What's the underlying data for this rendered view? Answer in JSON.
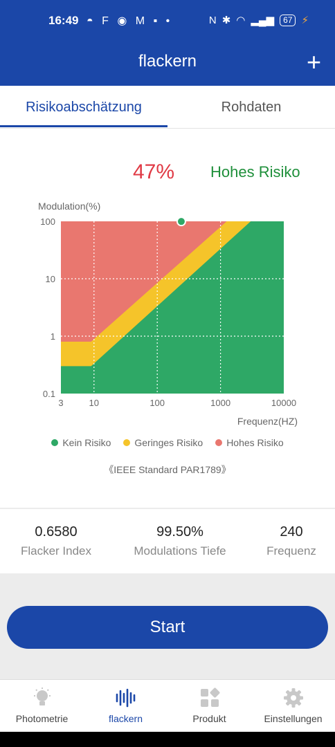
{
  "status_bar": {
    "time": "16:49",
    "notifications": "◓ F ◉ M ▪ •",
    "battery": "67"
  },
  "app_bar": {
    "title": "flackern",
    "add_icon": "plus-icon"
  },
  "tabs": [
    {
      "label": "Risikoabschätzung",
      "active": true
    },
    {
      "label": "Rohdaten",
      "active": false
    }
  ],
  "risk": {
    "percent": "47%",
    "label": "Hohes Risiko"
  },
  "chart_data": {
    "type": "area",
    "ylabel": "Modulation(%)",
    "xlabel": "Frequenz(HZ)",
    "x_scale": "log",
    "y_scale": "log",
    "xlim": [
      3,
      10000
    ],
    "ylim": [
      0.1,
      100
    ],
    "x_ticks": [
      "3",
      "10",
      "100",
      "1000",
      "10000"
    ],
    "y_ticks": [
      "100",
      "10",
      "1",
      "0.1"
    ],
    "grid": true,
    "regions": [
      {
        "name": "Kein Risiko",
        "color": "#2ea866"
      },
      {
        "name": "Geringes Risiko",
        "color": "#f5c42a"
      },
      {
        "name": "Hohes Risiko",
        "color": "#e9776f"
      }
    ],
    "measurement_point": {
      "x": 240,
      "y": 99.5
    },
    "legend_position": "bottom"
  },
  "legend": [
    {
      "label": "Kein Risiko",
      "color": "#2ea866"
    },
    {
      "label": "Geringes Risiko",
      "color": "#f5c42a"
    },
    {
      "label": "Hohes Risiko",
      "color": "#e9776f"
    }
  ],
  "standard": "《IEEE Standard PAR1789》",
  "stats": [
    {
      "value": "0.6580",
      "label": "Flacker Index"
    },
    {
      "value": "99.50%",
      "label": "Modulations Tiefe"
    },
    {
      "value": "240",
      "label": "Frequenz"
    }
  ],
  "start_button": "Start",
  "bottom_nav": [
    {
      "label": "Photometrie",
      "icon": "bulb-icon",
      "active": false
    },
    {
      "label": "flackern",
      "icon": "waveform-icon",
      "active": true
    },
    {
      "label": "Produkt",
      "icon": "grid-icon",
      "active": false
    },
    {
      "label": "Einstellungen",
      "icon": "gear-icon",
      "active": false
    }
  ],
  "colors": {
    "primary": "#1b47a8",
    "high_risk_text": "#e03a45",
    "risk_label_text": "#1e8f3a"
  }
}
